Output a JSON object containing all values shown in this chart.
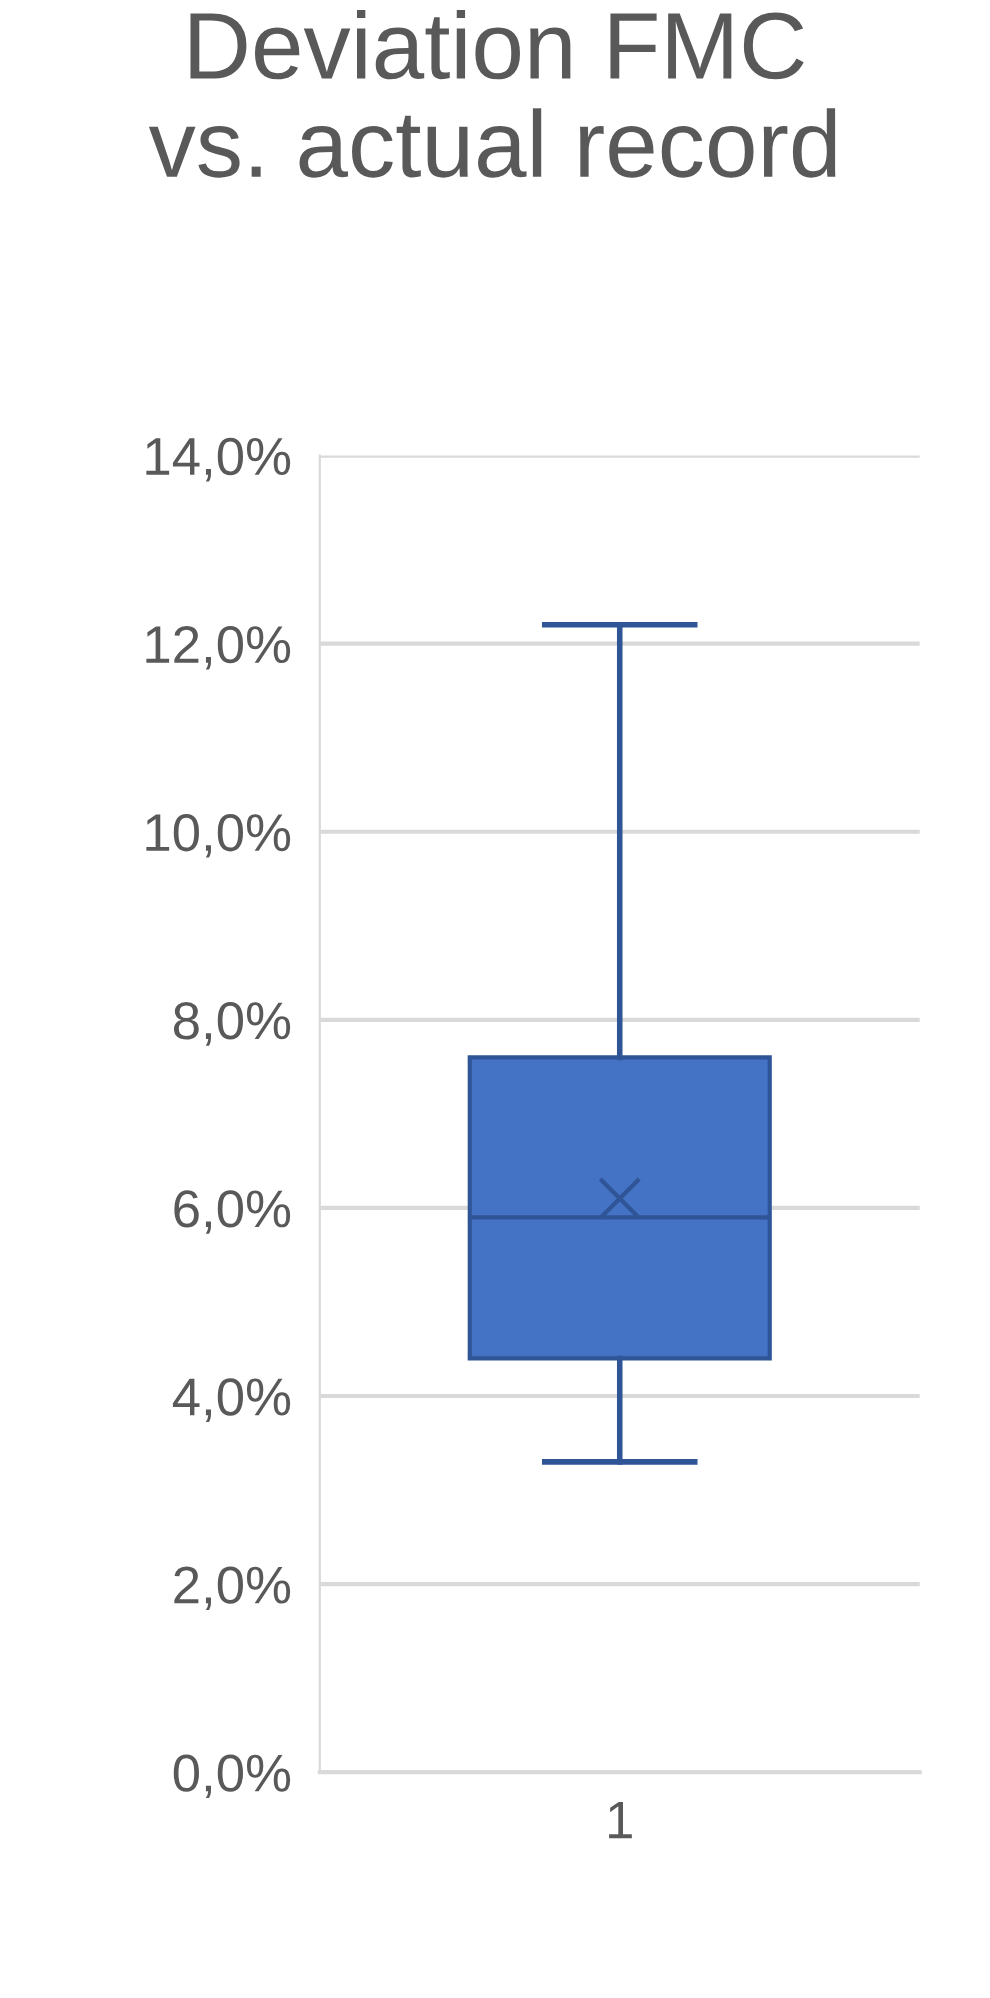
{
  "chart_data": {
    "type": "box",
    "title": "Deviation FMC\nvs. actual record",
    "categories": [
      "1"
    ],
    "boxes": [
      {
        "low": 3.3,
        "q1": 4.4,
        "median": 5.9,
        "q3": 7.6,
        "high": 12.2,
        "mean": 6.1
      }
    ],
    "color": "#4472c4",
    "ylim": [
      0,
      14
    ],
    "yticks": [
      {
        "value": 0,
        "label": "0,0%"
      },
      {
        "value": 2,
        "label": "2,0%"
      },
      {
        "value": 4,
        "label": "4,0%"
      },
      {
        "value": 6,
        "label": "6,0%"
      },
      {
        "value": 8,
        "label": "8,0%"
      },
      {
        "value": 10,
        "label": "10,0%"
      },
      {
        "value": 12,
        "label": "12,0%"
      },
      {
        "value": 14,
        "label": "14,0%"
      }
    ],
    "grid": "y",
    "legend": false
  }
}
